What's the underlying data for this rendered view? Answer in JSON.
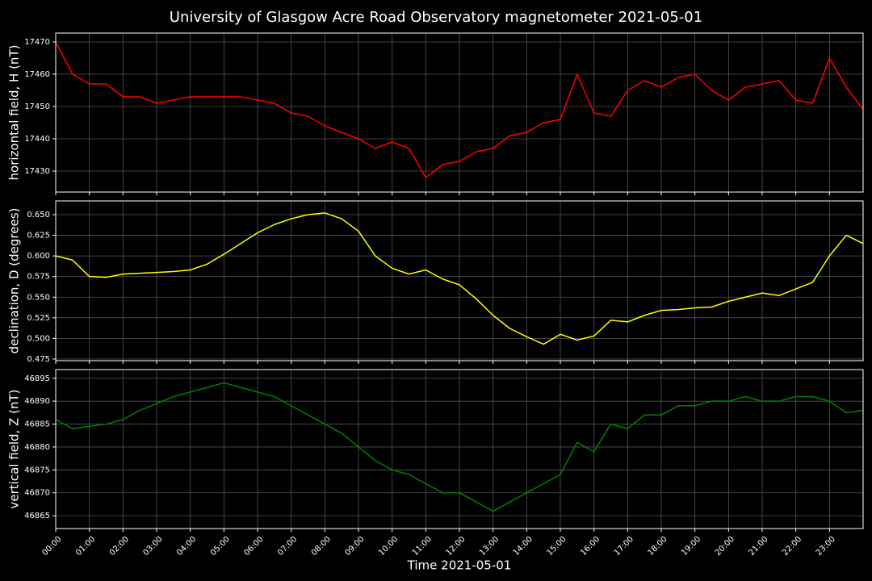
{
  "title": "University of Glasgow Acre Road Observatory magnetometer 2021-05-01",
  "chart_data": [
    {
      "type": "line",
      "ylabel": "horizontal field, H (nT)",
      "color": "#ff0000",
      "x": [
        0,
        0.5,
        1,
        1.5,
        2,
        2.5,
        3,
        3.5,
        4,
        4.5,
        5,
        5.5,
        6,
        6.5,
        7,
        7.5,
        8,
        8.5,
        9,
        9.5,
        10,
        10.5,
        11,
        11.5,
        12,
        12.5,
        13,
        13.5,
        14,
        14.5,
        15,
        15.5,
        16,
        16.5,
        17,
        17.5,
        18,
        18.5,
        19,
        19.5,
        20,
        20.5,
        21,
        21.5,
        22,
        22.5,
        23,
        23.5,
        24
      ],
      "values": [
        17470,
        17460,
        17457,
        17457,
        17453,
        17453,
        17451,
        17452,
        17453,
        17453,
        17453,
        17453,
        17452,
        17451,
        17448,
        17447,
        17444,
        17442,
        17440,
        17437,
        17439,
        17437,
        17428,
        17432,
        17433,
        17436,
        17437,
        17441,
        17442,
        17445,
        17446,
        17460,
        17448,
        17447,
        17455,
        17458,
        17456,
        17459,
        17460,
        17455,
        17452,
        17456,
        17457,
        17458,
        17452,
        17451,
        17465,
        17456,
        17449
      ],
      "xlim": [
        0,
        24
      ],
      "xticks": [
        0,
        1,
        2,
        3,
        4,
        5,
        6,
        7,
        8,
        9,
        10,
        11,
        12,
        13,
        14,
        15,
        16,
        17,
        18,
        19,
        20,
        21,
        22,
        23
      ],
      "ylim": [
        17423.5,
        17472.75
      ],
      "yticks": [
        17430,
        17440,
        17450,
        17460,
        17470
      ],
      "grid": true
    },
    {
      "type": "line",
      "ylabel": "declination, D (degrees)",
      "color": "#ffff00",
      "x": [
        0,
        0.5,
        1,
        1.5,
        2,
        2.5,
        3,
        3.5,
        4,
        4.5,
        5,
        5.5,
        6,
        6.5,
        7,
        7.5,
        8,
        8.5,
        9,
        9.5,
        10,
        10.5,
        11,
        11.5,
        12,
        12.5,
        13,
        13.5,
        14,
        14.5,
        15,
        15.5,
        16,
        16.5,
        17,
        17.5,
        18,
        18.5,
        19,
        19.5,
        20,
        20.5,
        21,
        21.5,
        22,
        22.5,
        23,
        23.5,
        24
      ],
      "values": [
        0.6,
        0.595,
        0.575,
        0.574,
        0.578,
        0.579,
        0.58,
        0.581,
        0.583,
        0.59,
        0.602,
        0.615,
        0.628,
        0.638,
        0.645,
        0.65,
        0.652,
        0.645,
        0.63,
        0.6,
        0.585,
        0.578,
        0.583,
        0.572,
        0.565,
        0.548,
        0.528,
        0.512,
        0.502,
        0.493,
        0.505,
        0.498,
        0.503,
        0.522,
        0.52,
        0.528,
        0.534,
        0.535,
        0.537,
        0.538,
        0.545,
        0.55,
        0.555,
        0.552,
        0.56,
        0.568,
        0.6,
        0.625,
        0.615
      ],
      "xlim": [
        0,
        24
      ],
      "xticks": [
        0,
        1,
        2,
        3,
        4,
        5,
        6,
        7,
        8,
        9,
        10,
        11,
        12,
        13,
        14,
        15,
        16,
        17,
        18,
        19,
        20,
        21,
        22,
        23
      ],
      "ylim": [
        0.473,
        0.6666
      ],
      "yticks": [
        0.475,
        {
          "value": 0.5,
          "label": "0.500"
        },
        0.525,
        {
          "value": 0.55,
          "label": "0.550"
        },
        0.575,
        {
          "value": 0.6,
          "label": "0.600"
        },
        0.625,
        {
          "value": 0.65,
          "label": "0.650"
        }
      ],
      "grid": true
    },
    {
      "type": "line",
      "ylabel": "vertical field, Z (nT)",
      "xlabel": "Time 2021-05-01",
      "color": "#008000",
      "x": [
        0,
        0.5,
        1,
        1.5,
        2,
        2.5,
        3,
        3.5,
        4,
        4.5,
        5,
        5.5,
        6,
        6.5,
        7,
        7.5,
        8,
        8.5,
        9,
        9.5,
        10,
        10.5,
        11,
        11.5,
        12,
        12.5,
        13,
        13.5,
        14,
        14.5,
        15,
        15.5,
        16,
        16.5,
        17,
        17.5,
        18,
        18.5,
        19,
        19.5,
        20,
        20.5,
        21,
        21.5,
        22,
        22.5,
        23,
        23.5,
        24
      ],
      "values": [
        46886,
        46884,
        46884.5,
        46885,
        46886,
        46888,
        46889.5,
        46891,
        46892,
        46893,
        46894,
        46893,
        46892,
        46891,
        46889,
        46887,
        46885,
        46883,
        46880,
        46877,
        46875,
        46874,
        46872,
        46870,
        46870,
        46868,
        46866,
        46868,
        46870,
        46872,
        46874,
        46881,
        46879,
        46885,
        46884,
        46887,
        46887,
        46889,
        46889,
        46890,
        46890,
        46891,
        46890,
        46890,
        46891,
        46891,
        46890,
        46887.5,
        46888
      ],
      "xlim": [
        0,
        24
      ],
      "xticks": [
        {
          "value": 0,
          "label": "00:00"
        },
        {
          "value": 1,
          "label": "01:00"
        },
        {
          "value": 2,
          "label": "02:00"
        },
        {
          "value": 3,
          "label": "03:00"
        },
        {
          "value": 4,
          "label": "04:00"
        },
        {
          "value": 5,
          "label": "05:00"
        },
        {
          "value": 6,
          "label": "06:00"
        },
        {
          "value": 7,
          "label": "07:00"
        },
        {
          "value": 8,
          "label": "08:00"
        },
        {
          "value": 9,
          "label": "09:00"
        },
        {
          "value": 10,
          "label": "10:00"
        },
        {
          "value": 11,
          "label": "11:00"
        },
        {
          "value": 12,
          "label": "12:00"
        },
        {
          "value": 13,
          "label": "13:00"
        },
        {
          "value": 14,
          "label": "14:00"
        },
        {
          "value": 15,
          "label": "15:00"
        },
        {
          "value": 16,
          "label": "16:00"
        },
        {
          "value": 17,
          "label": "17:00"
        },
        {
          "value": 18,
          "label": "18:00"
        },
        {
          "value": 19,
          "label": "19:00"
        },
        {
          "value": 20,
          "label": "20:00"
        },
        {
          "value": 21,
          "label": "21:00"
        },
        {
          "value": 22,
          "label": "22:00"
        },
        {
          "value": 23,
          "label": "23:00"
        }
      ],
      "ylim": [
        46862.2,
        46896.9
      ],
      "yticks": [
        46865,
        46870,
        46875,
        46880,
        46885,
        46890,
        46895
      ],
      "grid": true
    }
  ]
}
